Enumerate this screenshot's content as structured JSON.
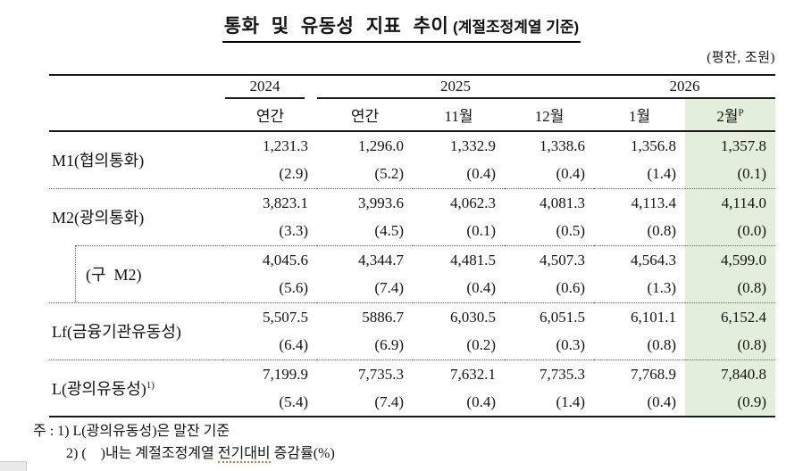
{
  "title": {
    "main": "통화 및 유동성 지표 추이",
    "sub": " (계절조정계열 기준)"
  },
  "unit_note": "(평잔, 조원)",
  "table": {
    "year_groups": [
      {
        "label": "2024"
      },
      {
        "label": "2025"
      },
      {
        "label": "2026"
      }
    ],
    "month_headers": [
      "연간",
      "연간",
      "11월",
      "12월",
      "1월",
      "2월"
    ],
    "proviso_mark": "P",
    "rows": [
      {
        "label": "M1(협의통화)",
        "sup": "",
        "indent": false,
        "values": [
          "1,231.3",
          "1,296.0",
          "1,332.9",
          "1,338.6",
          "1,356.8",
          "1,357.8"
        ],
        "rates": [
          "(2.9)",
          "(5.2)",
          "(0.4)",
          "(0.4)",
          "(1.4)",
          "(0.1)"
        ]
      },
      {
        "label": "M2(광의통화)",
        "sup": "",
        "indent": false,
        "values": [
          "3,823.1",
          "3,993.6",
          "4,062.3",
          "4,081.3",
          "4,113.4",
          "4,114.0"
        ],
        "rates": [
          "(3.3)",
          "(4.5)",
          "(0.1)",
          "(0.5)",
          "(0.8)",
          "(0.0)"
        ]
      },
      {
        "label": "(구  M2)",
        "sup": "",
        "indent": true,
        "values": [
          "4,045.6",
          "4,344.7",
          "4,481.5",
          "4,507.3",
          "4,564.3",
          "4,599.0"
        ],
        "rates": [
          "(5.6)",
          "(7.4)",
          "(0.4)",
          "(0.6)",
          "(1.3)",
          "(0.8)"
        ]
      },
      {
        "label": "Lf(금융기관유동성)",
        "sup": "",
        "indent": false,
        "values": [
          "5,507.5",
          "5886.7",
          "6,030.5",
          "6,051.5",
          "6,101.1",
          "6,152.4"
        ],
        "rates": [
          "(6.4)",
          "(6.9)",
          "(0.2)",
          "(0.3)",
          "(0.8)",
          "(0.8)"
        ]
      },
      {
        "label": "L(광의유동성)",
        "sup": "1)",
        "indent": false,
        "values": [
          "7,199.9",
          "7,735.3",
          "7,632.1",
          "7,735.3",
          "7,768.9",
          "7,840.8"
        ],
        "rates": [
          "(5.4)",
          "(7.4)",
          "(0.4)",
          "(1.4)",
          "(0.4)",
          "(0.9)"
        ]
      }
    ]
  },
  "notes": {
    "line1": "주 : 1) L(광의유동성)은 말잔 기준",
    "line2_pre": "2) (    )내는 계절조정계열 ",
    "line2_underlined": "전기대비",
    "line2_post": " 증감률(%)"
  },
  "colors": {
    "highlight_green": "#e3efda",
    "spellcheck_underline": "#d96f2e"
  }
}
